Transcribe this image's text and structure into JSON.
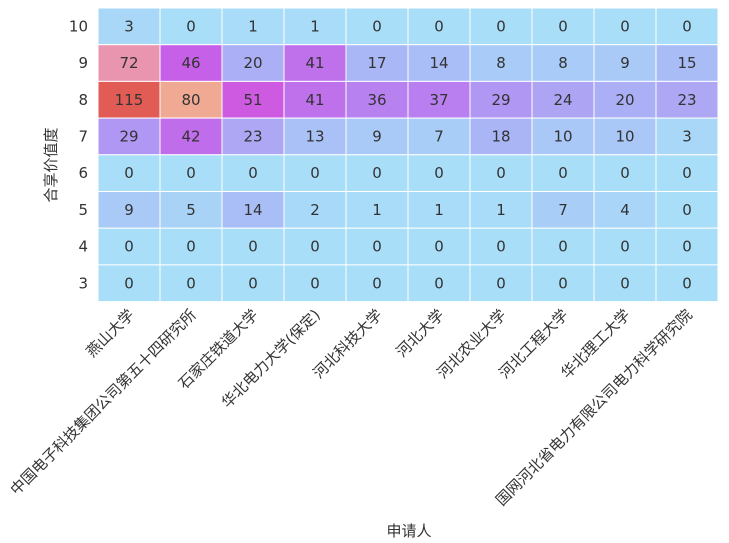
{
  "chart_data": {
    "type": "heatmap",
    "title": "",
    "xlabel": "申请人",
    "ylabel": "合享价值度",
    "x_categories": [
      "燕山大学",
      "中国电子科技集团公司第五十四研究所",
      "石家庄铁道大学",
      "华北电力大学(保定)",
      "河北科技大学",
      "河北大学",
      "河北农业大学",
      "河北工程大学",
      "华北理工大学",
      "国网河北省电力有限公司电力科学研究院"
    ],
    "y_categories": [
      "10",
      "9",
      "8",
      "7",
      "6",
      "5",
      "4",
      "3"
    ],
    "values": [
      [
        3,
        0,
        1,
        1,
        0,
        0,
        0,
        0,
        0,
        0
      ],
      [
        72,
        46,
        20,
        41,
        17,
        14,
        8,
        8,
        9,
        15
      ],
      [
        115,
        80,
        51,
        41,
        36,
        37,
        29,
        24,
        20,
        23
      ],
      [
        29,
        42,
        23,
        13,
        9,
        7,
        18,
        10,
        10,
        3
      ],
      [
        0,
        0,
        0,
        0,
        0,
        0,
        0,
        0,
        0,
        0
      ],
      [
        9,
        5,
        14,
        2,
        1,
        1,
        1,
        7,
        4,
        0
      ],
      [
        0,
        0,
        0,
        0,
        0,
        0,
        0,
        0,
        0,
        0
      ],
      [
        0,
        0,
        0,
        0,
        0,
        0,
        0,
        0,
        0,
        0
      ]
    ],
    "value_range": [
      0,
      115
    ],
    "colorscale": [
      "#a8def8",
      "#a9b9f6",
      "#b28cf2",
      "#cc55e6",
      "#e484c4",
      "#f2b08c",
      "#f8b878",
      "#e25c56"
    ],
    "grid": false,
    "legend": "none"
  }
}
